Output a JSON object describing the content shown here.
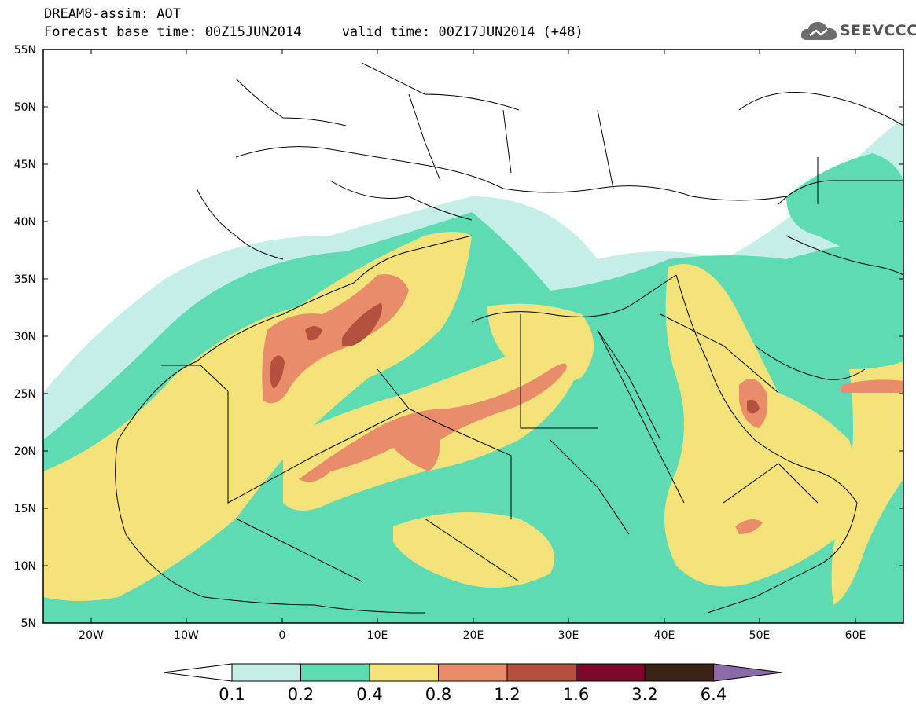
{
  "header": {
    "title": "DREAM8-assim: AOT",
    "forecast_line": "Forecast base time: 00Z15JUN2014     valid time: 00Z17JUN2014 (+48)"
  },
  "logo": {
    "text": "SEEVCCC",
    "icon": "cloud-icon"
  },
  "map": {
    "lon_range": [
      -25,
      65
    ],
    "lat_range": [
      5,
      55
    ],
    "lat_ticks": [
      "55N",
      "50N",
      "45N",
      "40N",
      "35N",
      "30N",
      "25N",
      "20N",
      "15N",
      "10N",
      "5N"
    ],
    "lon_ticks": [
      "20W",
      "10W",
      "0",
      "10E",
      "20E",
      "30E",
      "40E",
      "50E",
      "60E"
    ]
  },
  "colorbar": {
    "colors": [
      "#ffffff",
      "#c6eee8",
      "#5fdbb4",
      "#f4e27a",
      "#e98c6a",
      "#b4503e",
      "#7b0a2a",
      "#3a2315",
      "#8a6aa8"
    ],
    "labels": [
      "0.1",
      "0.2",
      "0.4",
      "0.8",
      "1.2",
      "1.6",
      "3.2",
      "6.4"
    ]
  }
}
